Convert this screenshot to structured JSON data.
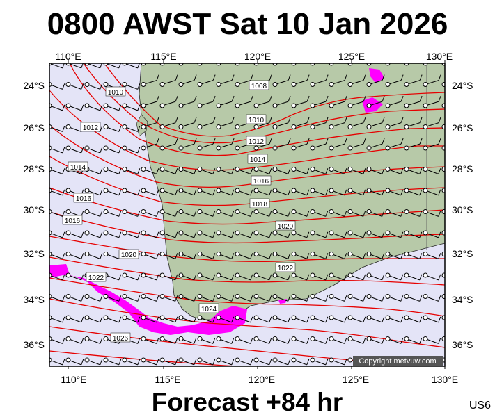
{
  "header": {
    "title": "0800 AWST Sat 10 Jan 2026"
  },
  "footer": {
    "forecast": "Forecast +84 hr",
    "code": "US6"
  },
  "map": {
    "lon_labels": [
      "110°E",
      "115°E",
      "120°E",
      "125°E",
      "130°E"
    ],
    "lat_labels": [
      "24°S",
      "26°S",
      "28°S",
      "30°S",
      "32°S",
      "34°S",
      "36°S"
    ],
    "copyright": "Copyright metvuw.com",
    "isobar_labels": [
      "1008",
      "1010",
      "1010",
      "1012",
      "1012",
      "1014",
      "1014",
      "1016",
      "1016",
      "1016",
      "1018",
      "1020",
      "1020",
      "1022",
      "1022",
      "1024",
      "1026"
    ],
    "colors": {
      "ocean": "#e4e4f7",
      "land": "#b7c9a8",
      "isobar": "#e60000",
      "rain": "#ff00ff"
    }
  }
}
